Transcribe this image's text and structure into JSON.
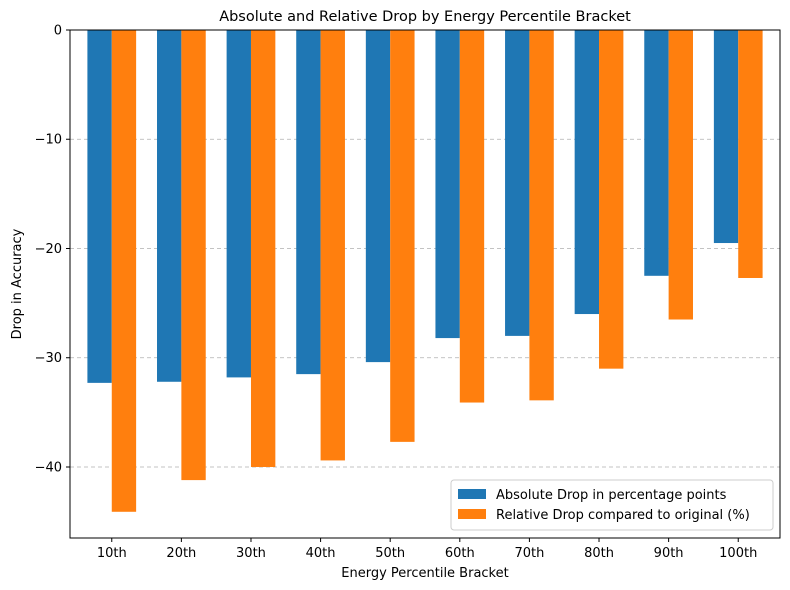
{
  "chart_data": {
    "type": "bar",
    "title": "Absolute and Relative Drop by Energy Percentile Bracket",
    "xlabel": "Energy Percentile Bracket",
    "ylabel": "Drop in Accuracy",
    "categories": [
      "10th",
      "20th",
      "30th",
      "40th",
      "50th",
      "60th",
      "70th",
      "80th",
      "90th",
      "100th"
    ],
    "series": [
      {
        "name": "Absolute Drop in percentage points",
        "color": "#1f77b4",
        "values": [
          -32.3,
          -32.2,
          -31.8,
          -31.5,
          -30.4,
          -28.2,
          -28.0,
          -26.0,
          -22.5,
          -19.5
        ]
      },
      {
        "name": "Relative Drop compared to original (%)",
        "color": "#ff7f0e",
        "values": [
          -44.1,
          -41.2,
          -40.0,
          -39.4,
          -37.7,
          -34.1,
          -33.9,
          -31.0,
          -26.5,
          -22.7
        ]
      }
    ],
    "ylim": [
      -46.5,
      0
    ],
    "yticks": [
      0,
      -10,
      -20,
      -30,
      -40
    ],
    "ytick_labels": [
      "0",
      "−10",
      "−20",
      "−30",
      "−40"
    ],
    "grid": "y-dashed",
    "legend_position": "lower-right"
  }
}
